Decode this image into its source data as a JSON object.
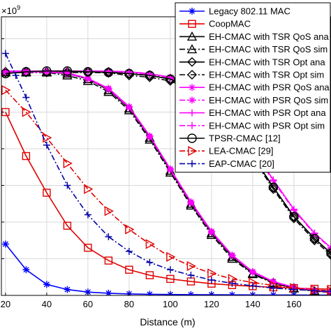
{
  "chart_data": {
    "type": "line",
    "title": "",
    "xlabel": "Distance (m)",
    "ylabel": "",
    "y_multiplier_label": "×10",
    "y_multiplier_exponent": "9",
    "xlim": [
      18,
      178
    ],
    "ylim": [
      0,
      7.6
    ],
    "x_ticks": [
      20,
      40,
      60,
      80,
      100,
      120,
      140,
      160
    ],
    "x_tick_labels": [
      "20",
      "40",
      "60",
      "80",
      "100",
      "120",
      "140",
      "160"
    ],
    "y_ticks": [
      0,
      1,
      2,
      3,
      4,
      5,
      6,
      7
    ],
    "grid": true,
    "legend_position": "top-right",
    "series": [
      {
        "name": "Legacy 802.11 MAC",
        "color": "#0000ff",
        "dash": "solid",
        "marker": "asterisk",
        "x": [
          20,
          30,
          40,
          50,
          60,
          70,
          80,
          90,
          100,
          110,
          120,
          130,
          140,
          150,
          160,
          170,
          178
        ],
        "y": [
          1.4,
          0.7,
          0.3,
          0.16,
          0.09,
          0.06,
          0.04,
          0.03,
          0.025,
          0.02,
          0.018,
          0.015,
          0.013,
          0.012,
          0.011,
          0.01,
          0.01
        ]
      },
      {
        "name": "CoopMAC",
        "color": "#e00000",
        "dash": "solid",
        "marker": "square",
        "x": [
          20,
          30,
          40,
          50,
          60,
          70,
          80,
          90,
          100,
          110,
          120,
          130,
          140,
          150,
          160,
          170,
          178
        ],
        "y": [
          5.0,
          3.8,
          2.8,
          1.9,
          1.3,
          0.95,
          0.7,
          0.55,
          0.45,
          0.38,
          0.32,
          0.28,
          0.25,
          0.22,
          0.2,
          0.18,
          0.17
        ]
      },
      {
        "name": "EH-CMAC with TSR QoS ana",
        "color": "#000000",
        "dash": "solid",
        "marker": "triangle",
        "x": [
          20,
          30,
          40,
          50,
          60,
          70,
          80,
          90,
          100,
          110,
          120,
          130,
          140,
          150,
          160,
          170,
          178
        ],
        "y": [
          6.1,
          6.1,
          6.1,
          6.05,
          5.9,
          5.6,
          5.1,
          4.3,
          3.4,
          2.5,
          1.7,
          1.05,
          0.6,
          0.35,
          0.2,
          0.12,
          0.09
        ]
      },
      {
        "name": "EH-CMAC with TSR QoS sim",
        "color": "#000000",
        "dash": "dashdot",
        "marker": "triangle",
        "x": [
          20,
          30,
          40,
          50,
          60,
          70,
          80,
          90,
          100,
          110,
          120,
          130,
          140,
          150,
          160,
          170,
          178
        ],
        "y": [
          6.08,
          6.08,
          6.08,
          6.0,
          5.85,
          5.55,
          5.05,
          4.25,
          3.35,
          2.45,
          1.65,
          1.0,
          0.58,
          0.33,
          0.19,
          0.11,
          0.08
        ]
      },
      {
        "name": "EH-CMAC with TSR Opt ana",
        "color": "#000000",
        "dash": "solid",
        "marker": "diamond",
        "x": [
          20,
          30,
          40,
          50,
          60,
          70,
          80,
          90,
          100,
          110,
          120,
          130,
          140,
          150,
          160,
          170,
          178
        ],
        "y": [
          6.1,
          6.1,
          6.1,
          6.1,
          6.1,
          6.1,
          6.05,
          6.0,
          5.9,
          5.65,
          5.2,
          4.6,
          3.8,
          2.95,
          2.15,
          1.55,
          1.15
        ]
      },
      {
        "name": "EH-CMAC with TSR Opt sim",
        "color": "#000000",
        "dash": "dashdot",
        "marker": "diamond",
        "x": [
          20,
          30,
          40,
          50,
          60,
          70,
          80,
          90,
          100,
          110,
          120,
          130,
          140,
          150,
          160,
          170,
          178
        ],
        "y": [
          6.08,
          6.08,
          6.08,
          6.08,
          6.08,
          6.07,
          6.0,
          5.95,
          5.85,
          5.6,
          5.15,
          4.55,
          3.75,
          2.9,
          2.1,
          1.5,
          1.1
        ]
      },
      {
        "name": "EH-CMAC with PSR QoS ana",
        "color": "#ff00ff",
        "dash": "solid",
        "marker": "asterisk",
        "x": [
          20,
          30,
          40,
          50,
          60,
          70,
          80,
          90,
          100,
          110,
          120,
          130,
          140,
          150,
          160,
          170,
          178
        ],
        "y": [
          6.1,
          6.1,
          6.1,
          6.07,
          5.92,
          5.65,
          5.15,
          4.35,
          3.45,
          2.55,
          1.75,
          1.1,
          0.65,
          0.38,
          0.22,
          0.14,
          0.1
        ]
      },
      {
        "name": "EH-CMAC with PSR QoS sim",
        "color": "#ff00ff",
        "dash": "dashdot",
        "marker": "asterisk",
        "x": [
          20,
          30,
          40,
          50,
          60,
          70,
          80,
          90,
          100,
          110,
          120,
          130,
          140,
          150,
          160,
          170,
          178
        ],
        "y": [
          6.09,
          6.09,
          6.09,
          6.05,
          5.9,
          5.62,
          5.12,
          4.32,
          3.42,
          2.52,
          1.72,
          1.08,
          0.63,
          0.36,
          0.21,
          0.13,
          0.09
        ]
      },
      {
        "name": "EH-CMAC with PSR Opt ana",
        "color": "#ff00ff",
        "dash": "solid",
        "marker": "plus",
        "x": [
          20,
          30,
          40,
          50,
          60,
          70,
          80,
          90,
          100,
          110,
          120,
          130,
          140,
          150,
          160,
          170,
          178
        ],
        "y": [
          6.12,
          6.12,
          6.12,
          6.12,
          6.12,
          6.12,
          6.1,
          6.05,
          5.95,
          5.75,
          5.35,
          4.8,
          4.0,
          3.15,
          2.35,
          1.7,
          1.3
        ]
      },
      {
        "name": "EH-CMAC with PSR Opt sim",
        "color": "#ff00ff",
        "dash": "dashdot",
        "marker": "plus",
        "x": [
          20,
          30,
          40,
          50,
          60,
          70,
          80,
          90,
          100,
          110,
          120,
          130,
          140,
          150,
          160,
          170,
          178
        ],
        "y": [
          6.11,
          6.11,
          6.11,
          6.11,
          6.11,
          6.1,
          6.08,
          6.02,
          5.92,
          5.72,
          5.32,
          4.77,
          3.97,
          3.12,
          2.32,
          1.68,
          1.28
        ]
      },
      {
        "name": "TPSR-CMAC [12]",
        "color": "#000000",
        "dash": "solid",
        "marker": "circle",
        "x": [
          20,
          30,
          40,
          50,
          60,
          70,
          80,
          90,
          100,
          110,
          120,
          130,
          140,
          150,
          160,
          170,
          178
        ],
        "y": [
          6.05,
          6.1,
          6.12,
          6.12,
          6.1,
          6.08,
          6.05,
          6.0,
          5.9,
          5.6,
          5.2,
          4.6,
          3.8,
          2.95,
          2.15,
          1.55,
          1.15
        ]
      },
      {
        "name": "LEA-CMAC [29]",
        "color": "#e00000",
        "dash": "dashdot",
        "marker": "triangle-right",
        "x": [
          20,
          30,
          40,
          50,
          60,
          70,
          80,
          90,
          100,
          110,
          120,
          130,
          140,
          150,
          160,
          170,
          178
        ],
        "y": [
          5.6,
          5.0,
          4.3,
          3.6,
          2.9,
          2.3,
          1.8,
          1.4,
          1.05,
          0.8,
          0.6,
          0.45,
          0.35,
          0.27,
          0.2,
          0.15,
          0.12
        ]
      },
      {
        "name": "EAP-CMAC [20]",
        "color": "#0000aa",
        "dash": "dashdot",
        "marker": "plus",
        "x": [
          20,
          25,
          30,
          40,
          50,
          60,
          70,
          80,
          90,
          100,
          110,
          120,
          130,
          140,
          150,
          160,
          170,
          178
        ],
        "y": [
          6.6,
          6.0,
          5.4,
          4.1,
          3.0,
          2.2,
          1.6,
          1.2,
          0.9,
          0.7,
          0.55,
          0.42,
          0.33,
          0.26,
          0.2,
          0.16,
          0.13,
          0.11
        ]
      }
    ]
  }
}
